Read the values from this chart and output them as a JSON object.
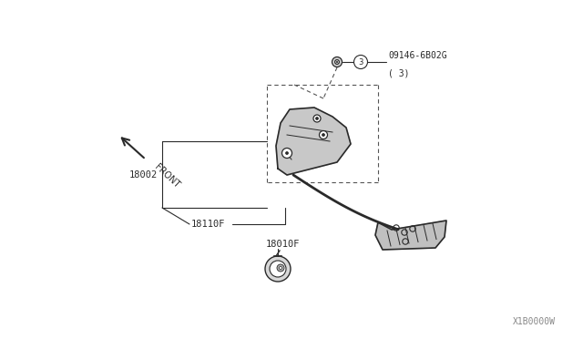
{
  "bg_color": "#ffffff",
  "line_color": "#2a2a2a",
  "part_number_1": "09146-6B02G",
  "part_number_1_sub": "( 3)",
  "part_number_2": "18002",
  "part_number_3": "18110F",
  "part_number_4": "18010F",
  "watermark": "X1B0000W",
  "front_label": "FRONT",
  "figsize": [
    6.4,
    3.72
  ],
  "dpi": 100
}
